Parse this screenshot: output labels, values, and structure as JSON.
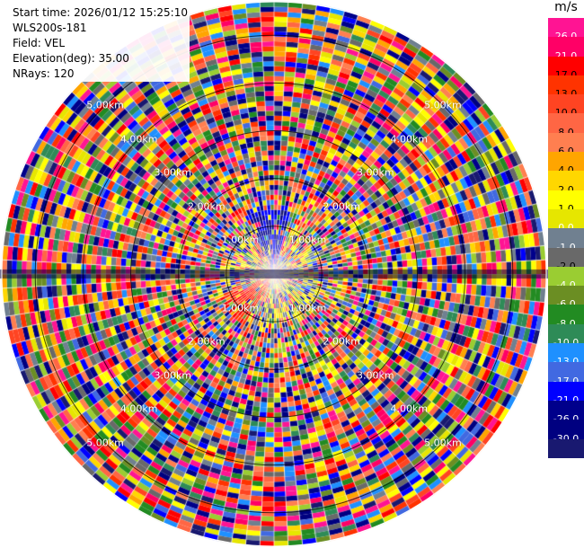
{
  "info": {
    "start_time": "Start time: 2026/01/12 15:25:10",
    "device": "WLS200s-181",
    "field": "Field: VEL",
    "elevation": "Elevation(deg): 35.00",
    "nrays": "NRays: 120"
  },
  "range_rings": {
    "labels": [
      "1.00km",
      "2.00km",
      "3.00km",
      "4.00km",
      "5.00km"
    ],
    "values_km": [
      1,
      2,
      3,
      4,
      5
    ]
  },
  "colorbar": {
    "unit": "m/s",
    "colors": [
      "#ff1493",
      "#ff0066",
      "#ff0000",
      "#ff3300",
      "#ff4422",
      "#ff6644",
      "#ff7f50",
      "#ffa500",
      "#ffd700",
      "#ffff00",
      "#e6e600",
      "#708090",
      "#696969",
      "#9acd32",
      "#6b8e23",
      "#228b22",
      "#2e8b57",
      "#1e90ff",
      "#4169e1",
      "#0000ff",
      "#00008b",
      "#000080",
      "#191970"
    ],
    "labels": [
      "26.0",
      "21.0",
      "17.0",
      "13.0",
      "10.0",
      "8.0",
      "6.0",
      "4.0",
      "2.0",
      "1.0",
      "0.0",
      "-1.0",
      "-2.0",
      "-4.0",
      "-6.0",
      "-8.0",
      "-10.0",
      "-13.0",
      "-17.0",
      "-21.0",
      "-26.0",
      "-30.0"
    ]
  }
}
